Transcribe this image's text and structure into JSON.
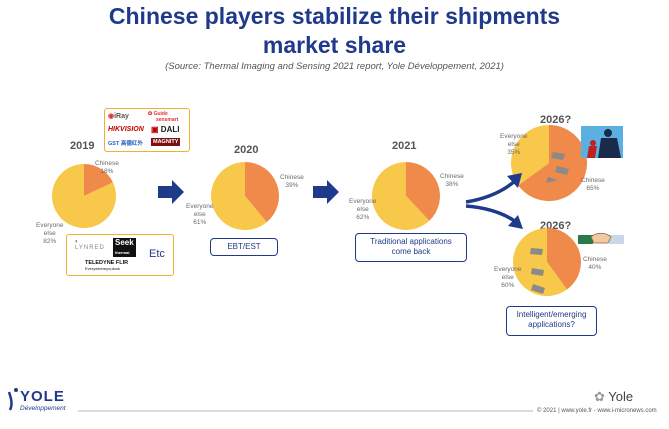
{
  "title_line1": "Chinese players stabilize their shipments",
  "title_line2": "market share",
  "source": "(Source: Thermal Imaging and Sensing 2021 report, Yole Développement, 2021)",
  "colors": {
    "chinese": "#f08a4b",
    "everyone_else": "#f8c84a",
    "title": "#1f3a8a",
    "arrow": "#1f3a8a"
  },
  "chart_data": [
    {
      "type": "pie",
      "title": "2019",
      "categories": [
        "Chinese",
        "Everyone else"
      ],
      "values": [
        18,
        82
      ],
      "labels": {
        "chinese": [
          "Chinese",
          "18%"
        ],
        "else": [
          "Everyone",
          "else",
          "82%"
        ]
      }
    },
    {
      "type": "pie",
      "title": "2020",
      "categories": [
        "Chinese",
        "Everyone else"
      ],
      "values": [
        39,
        61
      ],
      "labels": {
        "chinese": [
          "Chinese",
          "39%"
        ],
        "else": [
          "Everyone",
          "else",
          "61%"
        ]
      }
    },
    {
      "type": "pie",
      "title": "2021",
      "categories": [
        "Chinese",
        "Everyone else"
      ],
      "values": [
        38,
        62
      ],
      "labels": {
        "chinese": [
          "Chinese",
          "38%"
        ],
        "else": [
          "Everyone",
          "else",
          "62%"
        ]
      }
    },
    {
      "type": "pie",
      "title": "2026?",
      "categories": [
        "Chinese",
        "Everyone else"
      ],
      "values": [
        65,
        35
      ],
      "labels": {
        "chinese": [
          "Chinese",
          "65%"
        ],
        "else": [
          "Everyone",
          "else",
          "35%"
        ]
      }
    },
    {
      "type": "pie",
      "title": "2026?",
      "categories": [
        "Chinese",
        "Everyone else"
      ],
      "values": [
        40,
        60
      ],
      "labels": {
        "chinese": [
          "Chinese",
          "40%"
        ],
        "else": [
          "Everyone",
          "else",
          "60%"
        ]
      }
    }
  ],
  "notes": {
    "ebt": "EBT/EST",
    "traditional": [
      "Traditional applications",
      "come back"
    ],
    "intelligent": [
      "Intelligent/emerging",
      "applications?"
    ],
    "etc": "Etc"
  },
  "logos": {
    "iray": "iRay",
    "guide": "Guide",
    "guide_sub": "sensmart",
    "hikvision": "HIKVISION",
    "dali": "DALI",
    "gst": "GST 高德红外",
    "magnity": "MAGNITY",
    "lynred": "LYNRED",
    "seek": "Seek",
    "seek_sub": "thermal",
    "teledyne": "TELEDYNE FLIR",
    "teledyne_sub": "Everywhereyoulook"
  },
  "footer": {
    "brand": "YOLE",
    "brand_sub": "Développement",
    "copyright": "© 2021 | www.yole.fr - www.i-micronews.com",
    "watermark": "Yole"
  }
}
